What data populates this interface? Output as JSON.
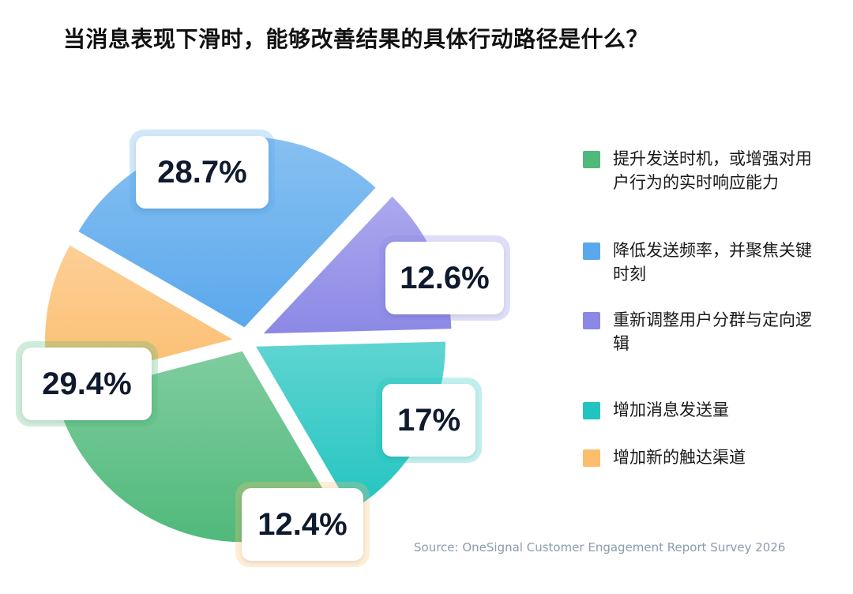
{
  "chart_data": {
    "type": "pie",
    "title": "当消息表现下滑时，能够改善结果的具体行动路径是什么？",
    "slices": [
      {
        "label": "提升发送时机，或增强对用户行为的实时响应能力",
        "value": 29.4,
        "display": "29.4%",
        "color": "#4fb97a"
      },
      {
        "label": "降低发送频率，并聚焦关键时刻",
        "value": 28.7,
        "display": "28.7%",
        "color": "#5aa8ec"
      },
      {
        "label": "重新调整用户分群与定向逻辑",
        "value": 12.6,
        "display": "12.6%",
        "color": "#8b88e6"
      },
      {
        "label": "增加消息发送量",
        "value": 17,
        "display": "17%",
        "color": "#22c4c0"
      },
      {
        "label": "增加新的触达渠道",
        "value": 12.4,
        "display": "12.4%",
        "color": "#fbbd6e"
      }
    ],
    "legend_position": "right"
  },
  "source": "Source: OneSignal Customer Engagement Report Survey 2026"
}
